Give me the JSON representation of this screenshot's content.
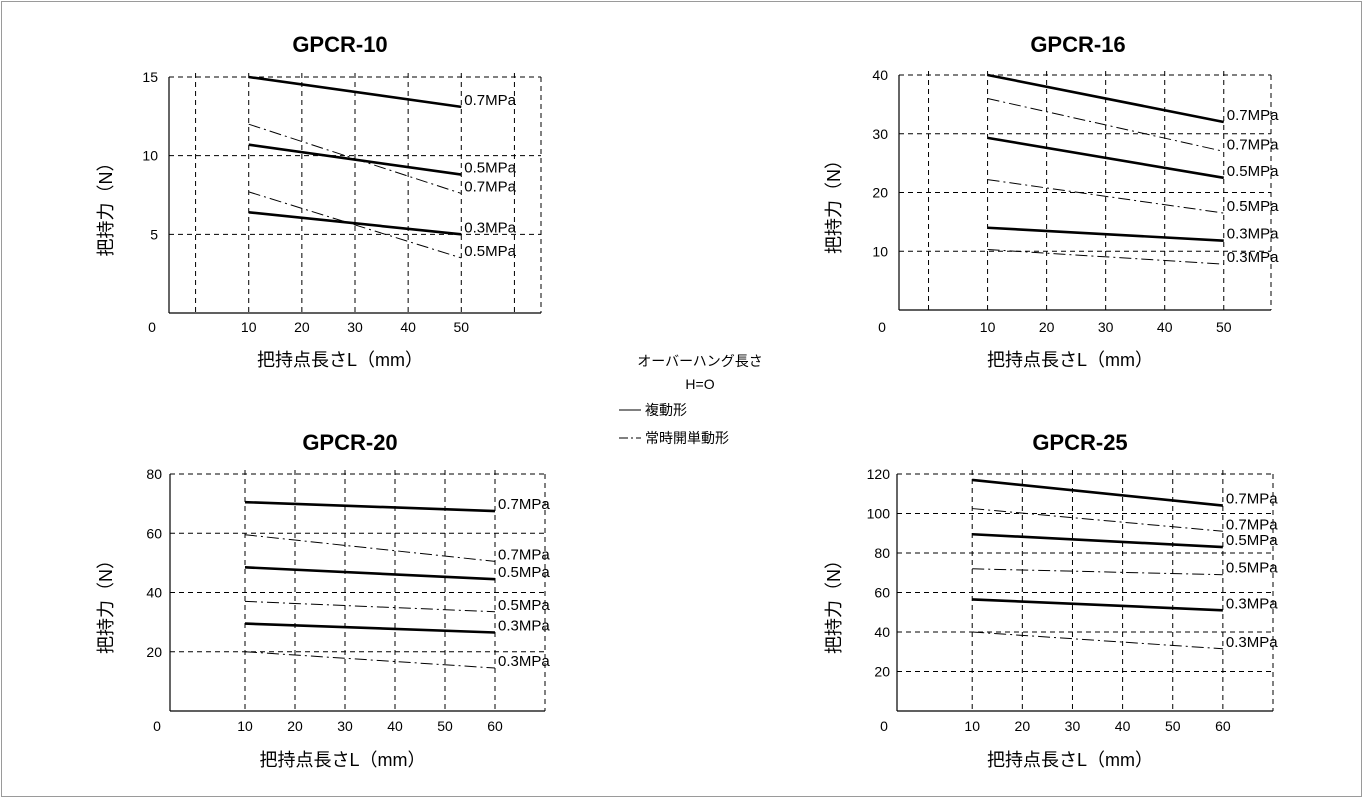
{
  "legend": {
    "heading": "オーバーハング長さ",
    "condition": "H=O",
    "items": [
      {
        "style": "solid",
        "label": "複動形"
      },
      {
        "style": "dashdot",
        "label": "常時開単動形"
      }
    ]
  },
  "chart_data": [
    {
      "type": "line",
      "title": "GPCR-10",
      "xlabel": "把持点長さL（mm）",
      "ylabel": "把持力（N）",
      "xlim": [
        -5,
        65
      ],
      "ylim": [
        0,
        15
      ],
      "x_ticks": [
        10,
        20,
        30,
        40,
        50
      ],
      "y_ticks": [
        5,
        10,
        15
      ],
      "x_grid": [
        0,
        10,
        20,
        30,
        40,
        50,
        60
      ],
      "y_grid": [
        5,
        10,
        15
      ],
      "origin_label": "0",
      "series": [
        {
          "name": "0.7MPa",
          "style": "solid",
          "x": [
            10,
            50
          ],
          "y": [
            15,
            13.1
          ]
        },
        {
          "name": "0.5MPa",
          "style": "solid",
          "x": [
            10,
            50
          ],
          "y": [
            10.7,
            8.8
          ]
        },
        {
          "name": "0.3MPa",
          "style": "solid",
          "x": [
            10,
            50
          ],
          "y": [
            6.4,
            5.0
          ]
        },
        {
          "name": "0.7MPa",
          "style": "dashdot",
          "x": [
            10,
            50
          ],
          "y": [
            12.0,
            7.6
          ]
        },
        {
          "name": "0.5MPa",
          "style": "dashdot",
          "x": [
            10,
            50
          ],
          "y": [
            7.7,
            3.5
          ]
        }
      ]
    },
    {
      "type": "line",
      "title": "GPCR-16",
      "xlabel": "把持点長さL（mm）",
      "ylabel": "把持力（N）",
      "xlim": [
        -5,
        58
      ],
      "ylim": [
        0,
        40
      ],
      "x_ticks": [
        10,
        20,
        30,
        40,
        50
      ],
      "y_ticks": [
        10,
        20,
        30,
        40
      ],
      "x_grid": [
        0,
        10,
        20,
        30,
        40,
        50
      ],
      "y_grid": [
        10,
        20,
        30,
        40
      ],
      "origin_label": "0",
      "series": [
        {
          "name": "0.7MPa",
          "style": "solid",
          "x": [
            10,
            50
          ],
          "y": [
            40,
            32
          ]
        },
        {
          "name": "0.7MPa",
          "style": "dashdot",
          "x": [
            10,
            50
          ],
          "y": [
            36,
            27
          ]
        },
        {
          "name": "0.5MPa",
          "style": "solid",
          "x": [
            10,
            50
          ],
          "y": [
            29.3,
            22.5
          ]
        },
        {
          "name": "0.5MPa",
          "style": "dashdot",
          "x": [
            10,
            50
          ],
          "y": [
            22.2,
            16.5
          ]
        },
        {
          "name": "0.3MPa",
          "style": "solid",
          "x": [
            10,
            50
          ],
          "y": [
            14,
            11.8
          ]
        },
        {
          "name": "0.3MPa",
          "style": "dashdot",
          "x": [
            10,
            50
          ],
          "y": [
            10.3,
            7.8
          ]
        }
      ]
    },
    {
      "type": "line",
      "title": "GPCR-20",
      "xlabel": "把持点長さL（mm）",
      "ylabel": "把持力（N）",
      "xlim": [
        -5,
        70
      ],
      "ylim": [
        0,
        80
      ],
      "x_ticks": [
        10,
        20,
        30,
        40,
        50,
        60
      ],
      "y_ticks": [
        20,
        40,
        60,
        80
      ],
      "x_grid": [
        10,
        20,
        30,
        40,
        50,
        60
      ],
      "y_grid": [
        20,
        40,
        60,
        80
      ],
      "origin_label": "0",
      "series": [
        {
          "name": "0.7MPa",
          "style": "solid",
          "x": [
            10,
            60
          ],
          "y": [
            70.5,
            67.5
          ]
        },
        {
          "name": "0.7MPa",
          "style": "dashdot",
          "x": [
            10,
            60
          ],
          "y": [
            59.5,
            50.5
          ]
        },
        {
          "name": "0.5MPa",
          "style": "solid",
          "x": [
            10,
            60
          ],
          "y": [
            48.5,
            44.5
          ]
        },
        {
          "name": "0.5MPa",
          "style": "dashdot",
          "x": [
            10,
            60
          ],
          "y": [
            37,
            33.5
          ]
        },
        {
          "name": "0.3MPa",
          "style": "solid",
          "x": [
            10,
            60
          ],
          "y": [
            29.5,
            26.5
          ]
        },
        {
          "name": "0.3MPa",
          "style": "dashdot",
          "x": [
            10,
            60
          ],
          "y": [
            20,
            14.5
          ]
        }
      ]
    },
    {
      "type": "line",
      "title": "GPCR-25",
      "xlabel": "把持点長さL（mm）",
      "ylabel": "把持力（N）",
      "xlim": [
        -5,
        70
      ],
      "ylim": [
        0,
        120
      ],
      "x_ticks": [
        10,
        20,
        30,
        40,
        50,
        60
      ],
      "y_ticks": [
        20,
        40,
        60,
        80,
        100,
        120
      ],
      "x_grid": [
        10,
        20,
        30,
        40,
        50,
        60
      ],
      "y_grid": [
        20,
        40,
        60,
        80,
        100,
        120
      ],
      "origin_label": "0",
      "series": [
        {
          "name": "0.7MPa",
          "style": "solid",
          "x": [
            10,
            60
          ],
          "y": [
            117,
            104
          ]
        },
        {
          "name": "0.7MPa",
          "style": "dashdot",
          "x": [
            10,
            60
          ],
          "y": [
            102.5,
            91
          ]
        },
        {
          "name": "0.5MPa",
          "style": "solid",
          "x": [
            10,
            60
          ],
          "y": [
            89.5,
            83
          ]
        },
        {
          "name": "0.5MPa",
          "style": "dashdot",
          "x": [
            10,
            60
          ],
          "y": [
            72,
            69
          ]
        },
        {
          "name": "0.3MPa",
          "style": "solid",
          "x": [
            10,
            60
          ],
          "y": [
            56.5,
            51
          ]
        },
        {
          "name": "0.3MPa",
          "style": "dashdot",
          "x": [
            10,
            60
          ],
          "y": [
            40,
            31.5
          ]
        }
      ]
    }
  ]
}
